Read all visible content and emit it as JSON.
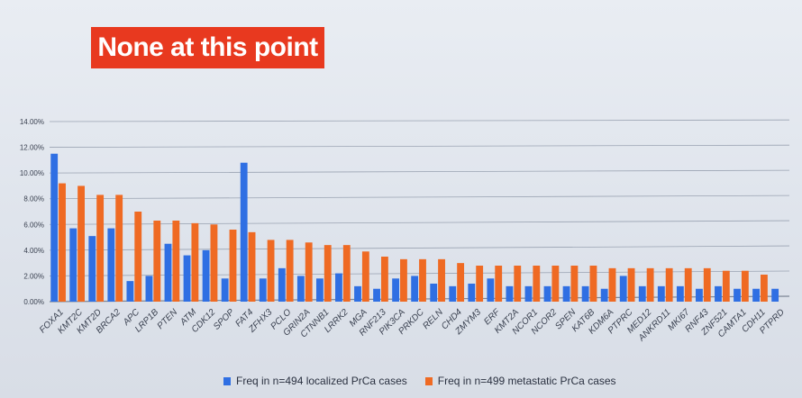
{
  "slide": {
    "title": "None at this point"
  },
  "colors": {
    "localized": "#2f6fe3",
    "metastatic": "#ef6a23",
    "title_bg": "#e8391f",
    "axis_text": "#3a4150",
    "grid": "#9aa3b2"
  },
  "chart_data": {
    "type": "bar",
    "title": "",
    "xlabel": "",
    "ylabel": "",
    "ylim": [
      0,
      14
    ],
    "ytick_labels": [
      "0.00%",
      "2.00%",
      "4.00%",
      "6.00%",
      "8.00%",
      "10.00%",
      "12.00%",
      "14.00%"
    ],
    "grid": true,
    "legend_position": "bottom",
    "categories": [
      "FOXA1",
      "KMT2C",
      "KMT2D",
      "BRCA2",
      "APC",
      "LRP1B",
      "PTEN",
      "ATM",
      "CDK12",
      "SPOP",
      "FAT4",
      "ZFHX3",
      "PCLO",
      "GRIN2A",
      "CTNNB1",
      "LRRK2",
      "MGA",
      "RNF213",
      "PIK3CA",
      "PRKDC",
      "RELN",
      "CHD4",
      "ZMYM3",
      "ERF",
      "KMT2A",
      "NCOR1",
      "NCOR2",
      "SPEN",
      "KAT6B",
      "KDM6A",
      "PTPRC",
      "MED12",
      "ANKRD11",
      "MKI67",
      "RNF43",
      "ZNF521",
      "CAMTA1",
      "CDH11",
      "PTPRD"
    ],
    "series": [
      {
        "name": "Freq in n=494 localized PrCa cases",
        "values": [
          11.5,
          5.7,
          5.1,
          5.7,
          1.6,
          2.0,
          4.5,
          3.6,
          4.0,
          1.8,
          10.8,
          1.8,
          2.6,
          2.0,
          1.8,
          2.2,
          1.2,
          1.0,
          1.8,
          2.0,
          1.4,
          1.2,
          1.4,
          1.8,
          1.2,
          1.2,
          1.2,
          1.2,
          1.2,
          1.0,
          2.0,
          1.2,
          1.2,
          1.2,
          1.0,
          1.2,
          1.0,
          1.0,
          1.0
        ]
      },
      {
        "name": "Freq in n=499 metastatic PrCa cases",
        "values": [
          9.2,
          9.0,
          8.3,
          8.3,
          7.0,
          6.3,
          6.3,
          6.1,
          6.0,
          5.6,
          5.4,
          4.8,
          4.8,
          4.6,
          4.4,
          4.4,
          3.9,
          3.5,
          3.3,
          3.3,
          3.3,
          3.0,
          2.8,
          2.8,
          2.8,
          2.8,
          2.8,
          2.8,
          2.8,
          2.6,
          2.6,
          2.6,
          2.6,
          2.6,
          2.6,
          2.4,
          2.4,
          2.1,
          null
        ]
      }
    ]
  }
}
